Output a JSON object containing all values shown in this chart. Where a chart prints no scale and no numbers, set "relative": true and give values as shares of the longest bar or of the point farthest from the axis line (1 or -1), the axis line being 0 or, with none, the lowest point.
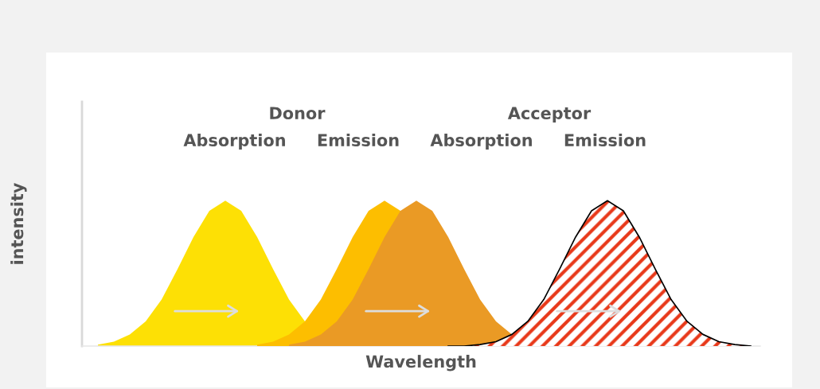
{
  "chart_data": {
    "type": "area",
    "relative": true,
    "xlabel": "Wavelength",
    "ylabel": "intensity",
    "categories": [
      null,
      null,
      null,
      null,
      null,
      null,
      null,
      null,
      null,
      null,
      null,
      null,
      null,
      null,
      null,
      null,
      null,
      null,
      null,
      null,
      null,
      null,
      null,
      null,
      null,
      null,
      null,
      null,
      null,
      null,
      null,
      null,
      null,
      null,
      null,
      null,
      null,
      null,
      null,
      null,
      null,
      null,
      null
    ],
    "series": [
      {
        "color": "#fde005",
        "values": [
          null,
          0.01,
          0.03,
          0.08,
          0.17,
          0.32,
          0.53,
          0.75,
          0.93,
          1,
          0.93,
          0.75,
          0.53,
          0.32,
          0.17,
          null,
          null,
          null,
          null,
          null,
          null,
          null,
          null,
          null,
          null,
          null,
          null,
          null,
          null,
          null,
          null,
          null,
          null,
          null,
          null,
          null,
          null,
          null,
          null,
          null,
          null,
          null,
          null
        ]
      },
      {
        "color": "#fdbe00",
        "values": [
          null,
          null,
          null,
          null,
          null,
          null,
          null,
          null,
          null,
          null,
          null,
          0.01,
          0.03,
          0.08,
          0.17,
          0.32,
          0.53,
          0.75,
          0.93,
          1,
          0.93,
          null,
          null,
          null,
          null,
          null,
          null,
          null,
          null,
          null,
          null,
          null,
          null,
          null,
          null,
          null,
          null,
          null,
          null,
          null,
          null,
          null,
          null
        ]
      },
      {
        "color": "#ea9a25",
        "values": [
          null,
          null,
          null,
          null,
          null,
          null,
          null,
          null,
          null,
          null,
          null,
          null,
          null,
          0.01,
          0.03,
          0.08,
          0.17,
          0.32,
          0.53,
          0.75,
          0.93,
          1,
          0.93,
          0.75,
          0.53,
          0.32,
          0.17,
          0.08,
          null,
          null,
          null,
          null,
          null,
          null,
          null,
          null,
          null,
          null,
          null,
          null,
          null,
          null,
          null
        ]
      },
      {
        "color": "#e8391a",
        "values": [
          null,
          null,
          null,
          null,
          null,
          null,
          null,
          null,
          null,
          null,
          null,
          null,
          null,
          null,
          null,
          null,
          null,
          null,
          null,
          null,
          null,
          null,
          null,
          0,
          0,
          0.01,
          0.03,
          0.08,
          0.17,
          0.32,
          0.53,
          0.75,
          0.93,
          1,
          0.93,
          0.75,
          0.53,
          0.32,
          0.17,
          0.08,
          0.03,
          0.01,
          0
        ]
      }
    ],
    "annotations": [
      "Donor",
      "Acceptor",
      "Absorption",
      "Emission",
      "Absorption",
      "Emission"
    ]
  }
}
